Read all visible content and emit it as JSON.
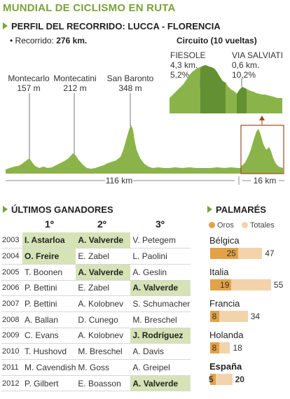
{
  "title": "MUNDIAL DE CICLISMO EN RUTA",
  "profile": {
    "heading": "PERFIL DEL RECORRIDO: LUCCA - FLORENCIA",
    "distance_label": "• Recorrido:",
    "distance_value": "276 km.",
    "places": [
      {
        "name": "Montecarlo",
        "alt": "157 m"
      },
      {
        "name": "Montecatini",
        "alt": "212 m"
      },
      {
        "name": "San Baronto",
        "alt": "348 m"
      }
    ],
    "circuit": {
      "title": "Circuito (10 vueltas)",
      "climbs": [
        {
          "name": "FIESOLE",
          "length": "4,3 km.",
          "grade": "5,2%"
        },
        {
          "name": "VIA SALVIATI",
          "length": "0,6 km.",
          "grade": "10,2%"
        }
      ]
    },
    "dist_main": "116 km",
    "dist_circuit": "16 km",
    "colors": {
      "profile_fill": "#8ab44a",
      "profile_dark": "#5a8a2e",
      "box_border": "#a04a1e"
    }
  },
  "winners": {
    "heading": "ÚLTIMOS GANADORES",
    "columns": [
      "1º",
      "2º",
      "3º"
    ],
    "rows": [
      {
        "year": "2003",
        "first": "I. Astarloa",
        "second": "A. Valverde",
        "third": "V. Petegem",
        "hl": [
          true,
          true,
          false
        ]
      },
      {
        "year": "2004",
        "first": "O. Freire",
        "second": "E. Zabel",
        "third": "L. Paolini",
        "hl": [
          true,
          false,
          false
        ]
      },
      {
        "year": "2005",
        "first": "T. Boonen",
        "second": "A. Valverde",
        "third": "A. Geslin",
        "hl": [
          false,
          true,
          false
        ]
      },
      {
        "year": "2006",
        "first": "P. Bettini",
        "second": "E. Zabel",
        "third": "A. Valverde",
        "hl": [
          false,
          false,
          true
        ]
      },
      {
        "year": "2007",
        "first": "P. Bettini",
        "second": "A. Kolobnev",
        "third": "S. Schumacher",
        "hl": [
          false,
          false,
          false
        ]
      },
      {
        "year": "2008",
        "first": "A. Ballan",
        "second": "D. Cunego",
        "third": "M. Breschel",
        "hl": [
          false,
          false,
          false
        ]
      },
      {
        "year": "2009",
        "first": "C. Evans",
        "second": "A. Kolobnev",
        "third": "J. Rodríguez",
        "hl": [
          false,
          false,
          true
        ]
      },
      {
        "year": "2010",
        "first": "T. Hushovd",
        "second": "M. Breschel",
        "third": "A. Davis",
        "hl": [
          false,
          false,
          false
        ]
      },
      {
        "year": "2011",
        "first": "M. Cavendish",
        "second": "M. Goss",
        "third": "A. Greipel",
        "hl": [
          false,
          false,
          false
        ]
      },
      {
        "year": "2012",
        "first": "P. Gilbert",
        "second": "E. Boasson",
        "third": "A. Valverde",
        "hl": [
          false,
          false,
          true
        ]
      }
    ]
  },
  "chart_data": {
    "type": "bar",
    "title": "PALMARÉS",
    "legend": [
      "Oros",
      "Totales"
    ],
    "categories": [
      "Bélgica",
      "Italia",
      "Francia",
      "Holanda",
      "España"
    ],
    "series": [
      {
        "name": "Oros",
        "values": [
          25,
          19,
          8,
          8,
          5
        ]
      },
      {
        "name": "Totales",
        "values": [
          47,
          55,
          34,
          18,
          20
        ]
      }
    ],
    "bold_category": "España",
    "colors": {
      "oros": "#e3a247",
      "totales": "#f2d3ab"
    }
  }
}
